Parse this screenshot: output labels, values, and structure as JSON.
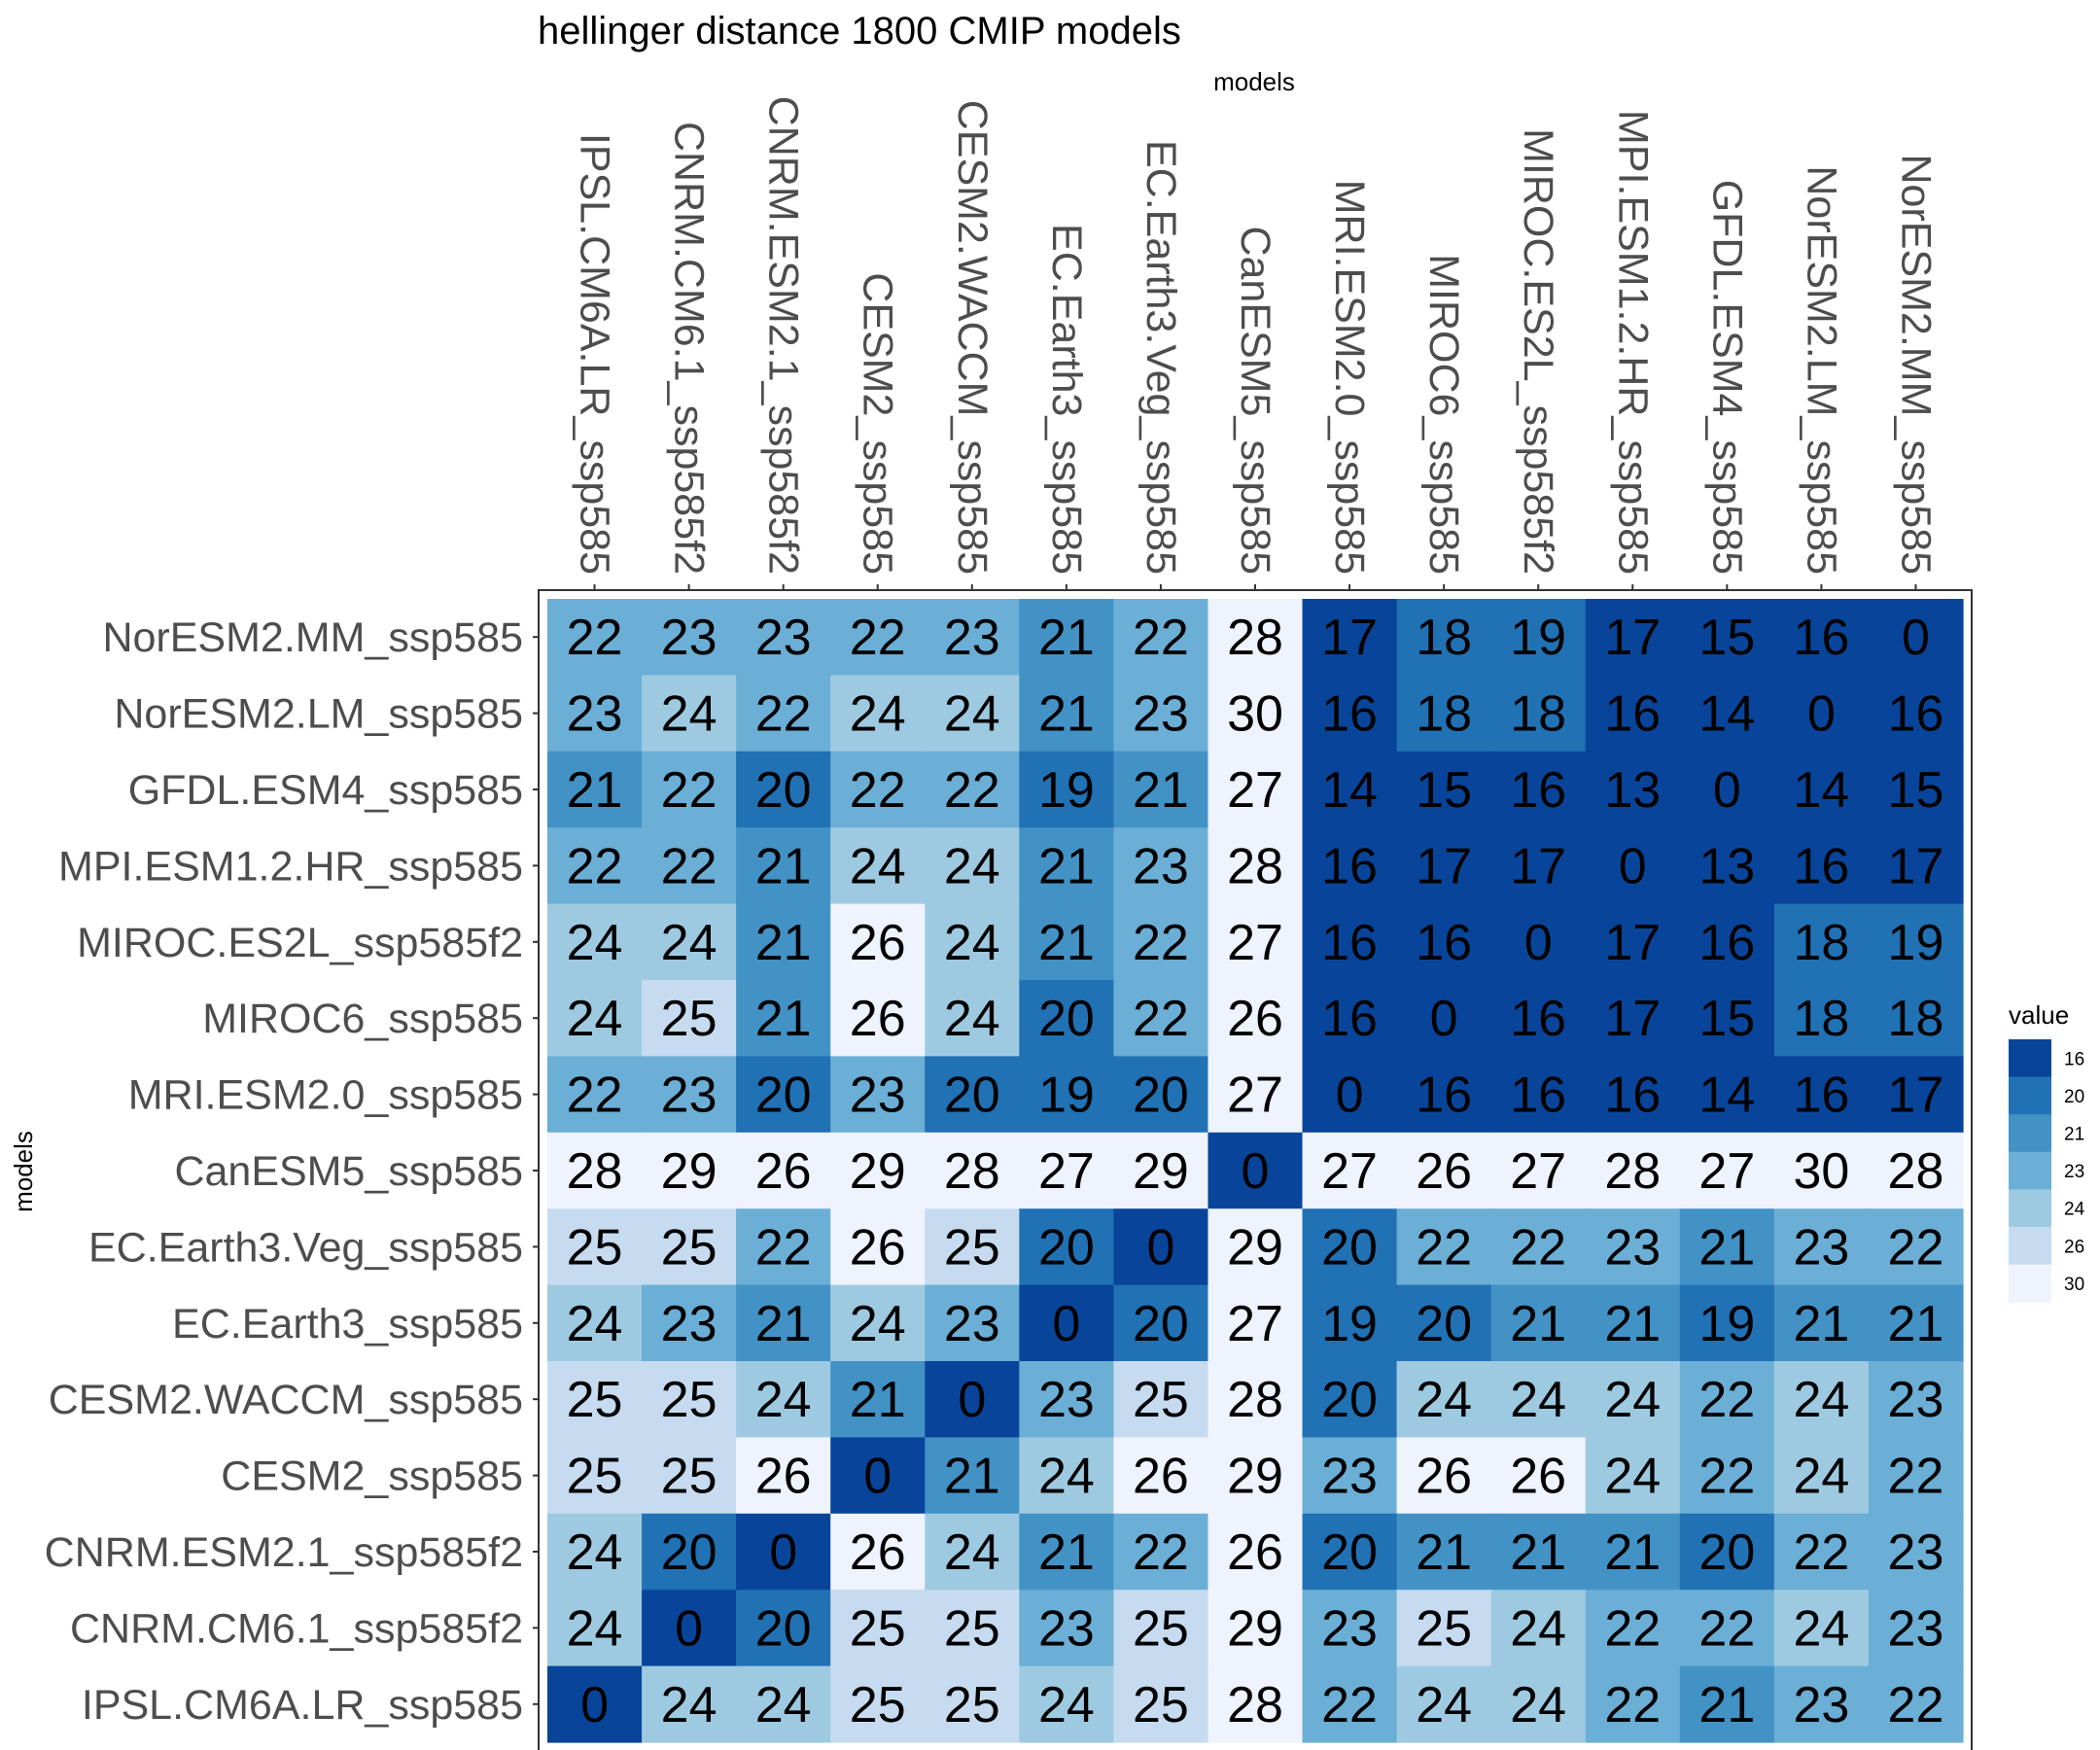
{
  "chart_data": {
    "type": "heatmap",
    "title": "hellinger distance 1800 CMIP models",
    "xlabel": "models",
    "ylabel": "models",
    "x_axis_position": "top",
    "columns": [
      "IPSL.CM6A.LR_ssp585",
      "CNRM.CM6.1_ssp585f2",
      "CNRM.ESM2.1_ssp585f2",
      "CESM2_ssp585",
      "CESM2.WACCM_ssp585",
      "EC.Earth3_ssp585",
      "EC.Earth3.Veg_ssp585",
      "CanESM5_ssp585",
      "MRI.ESM2.0_ssp585",
      "MIROC6_ssp585",
      "MIROC.ES2L_ssp585f2",
      "MPI.ESM1.2.HR_ssp585",
      "GFDL.ESM4_ssp585",
      "NorESM2.LM_ssp585",
      "NorESM2.MM_ssp585"
    ],
    "rows": [
      "NorESM2.MM_ssp585",
      "NorESM2.LM_ssp585",
      "GFDL.ESM4_ssp585",
      "MPI.ESM1.2.HR_ssp585",
      "MIROC.ES2L_ssp585f2",
      "MIROC6_ssp585",
      "MRI.ESM2.0_ssp585",
      "CanESM5_ssp585",
      "EC.Earth3.Veg_ssp585",
      "EC.Earth3_ssp585",
      "CESM2.WACCM_ssp585",
      "CESM2_ssp585",
      "CNRM.ESM2.1_ssp585f2",
      "CNRM.CM6.1_ssp585f2",
      "IPSL.CM6A.LR_ssp585"
    ],
    "values": [
      [
        22,
        23,
        23,
        22,
        23,
        21,
        22,
        28,
        17,
        18,
        19,
        17,
        15,
        16,
        0
      ],
      [
        23,
        24,
        22,
        24,
        24,
        21,
        23,
        30,
        16,
        18,
        18,
        16,
        14,
        0,
        16
      ],
      [
        21,
        22,
        20,
        22,
        22,
        19,
        21,
        27,
        14,
        15,
        16,
        13,
        0,
        14,
        15
      ],
      [
        22,
        22,
        21,
        24,
        24,
        21,
        23,
        28,
        16,
        17,
        17,
        0,
        13,
        16,
        17
      ],
      [
        24,
        24,
        21,
        26,
        24,
        21,
        22,
        27,
        16,
        16,
        0,
        17,
        16,
        18,
        19
      ],
      [
        24,
        25,
        21,
        26,
        24,
        20,
        22,
        26,
        16,
        0,
        16,
        17,
        15,
        18,
        18
      ],
      [
        22,
        23,
        20,
        23,
        20,
        19,
        20,
        27,
        0,
        16,
        16,
        16,
        14,
        16,
        17
      ],
      [
        28,
        29,
        26,
        29,
        28,
        27,
        29,
        0,
        27,
        26,
        27,
        28,
        27,
        30,
        28
      ],
      [
        25,
        25,
        22,
        26,
        25,
        20,
        0,
        29,
        20,
        22,
        22,
        23,
        21,
        23,
        22
      ],
      [
        24,
        23,
        21,
        24,
        23,
        0,
        20,
        27,
        19,
        20,
        21,
        21,
        19,
        21,
        21
      ],
      [
        25,
        25,
        24,
        21,
        0,
        23,
        25,
        28,
        20,
        24,
        24,
        24,
        22,
        24,
        23
      ],
      [
        25,
        25,
        26,
        0,
        21,
        24,
        26,
        29,
        23,
        26,
        26,
        24,
        22,
        24,
        22
      ],
      [
        24,
        20,
        0,
        26,
        24,
        21,
        22,
        26,
        20,
        21,
        21,
        21,
        20,
        22,
        23
      ],
      [
        24,
        0,
        20,
        25,
        25,
        23,
        25,
        29,
        23,
        25,
        24,
        22,
        22,
        24,
        23
      ],
      [
        0,
        24,
        24,
        25,
        25,
        24,
        25,
        28,
        22,
        24,
        24,
        22,
        21,
        23,
        22
      ]
    ],
    "legend": {
      "title": "value",
      "position": "right",
      "labels": [
        "16",
        "20",
        "21",
        "23",
        "24",
        "26",
        "30"
      ],
      "colors": [
        "#08459A",
        "#2171B5",
        "#4292C6",
        "#6BAED6",
        "#9ECAE1",
        "#C6DBEF",
        "#EEF3FD"
      ]
    },
    "color_bins": {
      "thresholds": [
        18,
        20.5,
        22,
        23.5,
        24.5,
        26
      ],
      "colors": [
        "#08459A",
        "#2171B5",
        "#4292C6",
        "#6BAED6",
        "#9ECAE1",
        "#C6DBEF",
        "#EEF3FD"
      ]
    }
  }
}
